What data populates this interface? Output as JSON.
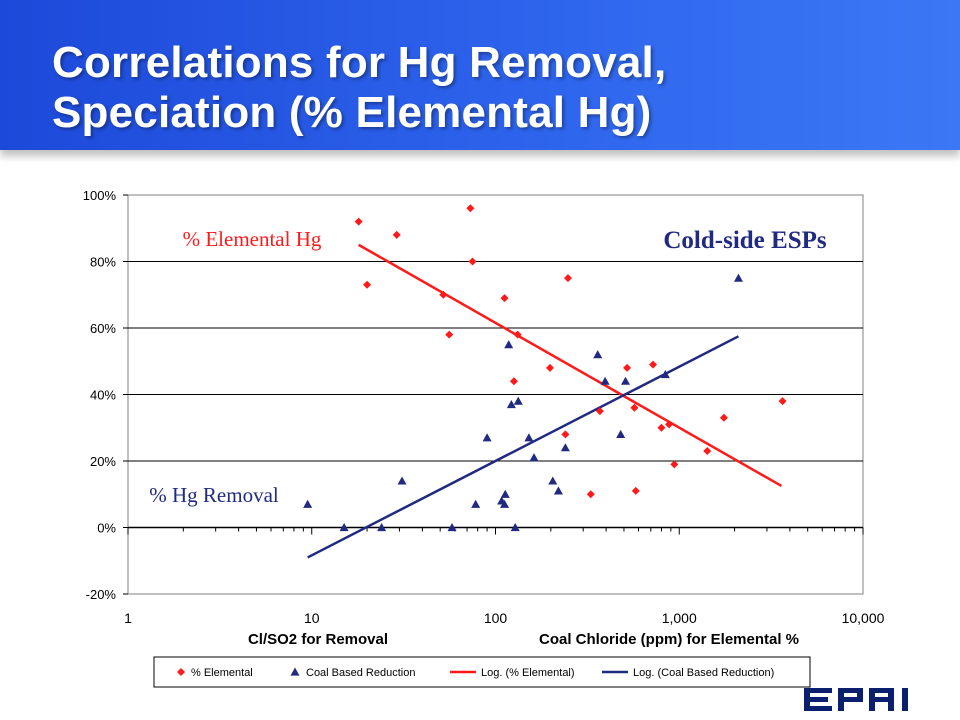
{
  "slide": {
    "title_line1": "Correlations for Hg Removal,",
    "title_line2": "Speciation (% Elemental Hg)",
    "logo_text": "EPRI"
  },
  "colors": {
    "banner": "#2a5ce8",
    "elemental": "#ff1a1a",
    "removal": "#1f2a80",
    "grid": "#000000"
  },
  "chart_data": {
    "type": "scatter",
    "title": "Cold-side ESPs",
    "xscale": "log",
    "xlim": [
      1,
      10000
    ],
    "ylim": [
      -20,
      100
    ],
    "xticks": [
      "1",
      "10",
      "100",
      "1,000",
      "10,000"
    ],
    "yticks": [
      "-20%",
      "0%",
      "20%",
      "40%",
      "60%",
      "80%",
      "100%"
    ],
    "xlabel_left": "Cl/SO2  for Removal",
    "xlabel_right": "Coal Chloride (ppm) for Elemental %",
    "annotations": {
      "elemental": "% Elemental Hg",
      "removal": "% Hg Removal"
    },
    "legend": {
      "position": "bottom",
      "entries": [
        "% Elemental",
        "Coal Based Reduction",
        "Log. (% Elemental)",
        "Log. (Coal Based Reduction)"
      ]
    },
    "series": [
      {
        "name": "% Elemental",
        "marker": "diamond",
        "points": [
          [
            18,
            92
          ],
          [
            20,
            73
          ],
          [
            29,
            88
          ],
          [
            52,
            70
          ],
          [
            56,
            58
          ],
          [
            73,
            96
          ],
          [
            75,
            80
          ],
          [
            112,
            69
          ],
          [
            126,
            44
          ],
          [
            132,
            58
          ],
          [
            198,
            48
          ],
          [
            240,
            28
          ],
          [
            248,
            75
          ],
          [
            330,
            10
          ],
          [
            370,
            35
          ],
          [
            520,
            48
          ],
          [
            570,
            36
          ],
          [
            580,
            11
          ],
          [
            720,
            49
          ],
          [
            800,
            30
          ],
          [
            880,
            31
          ],
          [
            940,
            19
          ],
          [
            1420,
            23
          ],
          [
            1750,
            33
          ],
          [
            3650,
            38
          ]
        ]
      },
      {
        "name": "Coal Based Reduction",
        "marker": "triangle",
        "points": [
          [
            9.5,
            7
          ],
          [
            15,
            0
          ],
          [
            24,
            0
          ],
          [
            31,
            14
          ],
          [
            58,
            0
          ],
          [
            78,
            7
          ],
          [
            90,
            27
          ],
          [
            108,
            8
          ],
          [
            112,
            7
          ],
          [
            113,
            10
          ],
          [
            118,
            55
          ],
          [
            122,
            37
          ],
          [
            128,
            0
          ],
          [
            133,
            38
          ],
          [
            152,
            27
          ],
          [
            162,
            21
          ],
          [
            205,
            14
          ],
          [
            220,
            11
          ],
          [
            240,
            24
          ],
          [
            360,
            52
          ],
          [
            395,
            44
          ],
          [
            480,
            28
          ],
          [
            510,
            44
          ],
          [
            840,
            46
          ],
          [
            2100,
            75
          ]
        ]
      },
      {
        "name": "Log. (% Elemental)",
        "type": "line",
        "points": [
          [
            18,
            85
          ],
          [
            3600,
            12.5
          ]
        ]
      },
      {
        "name": "Log. (Coal Based Reduction)",
        "type": "line",
        "points": [
          [
            9.5,
            -9
          ],
          [
            2100,
            57.5
          ]
        ]
      }
    ]
  }
}
